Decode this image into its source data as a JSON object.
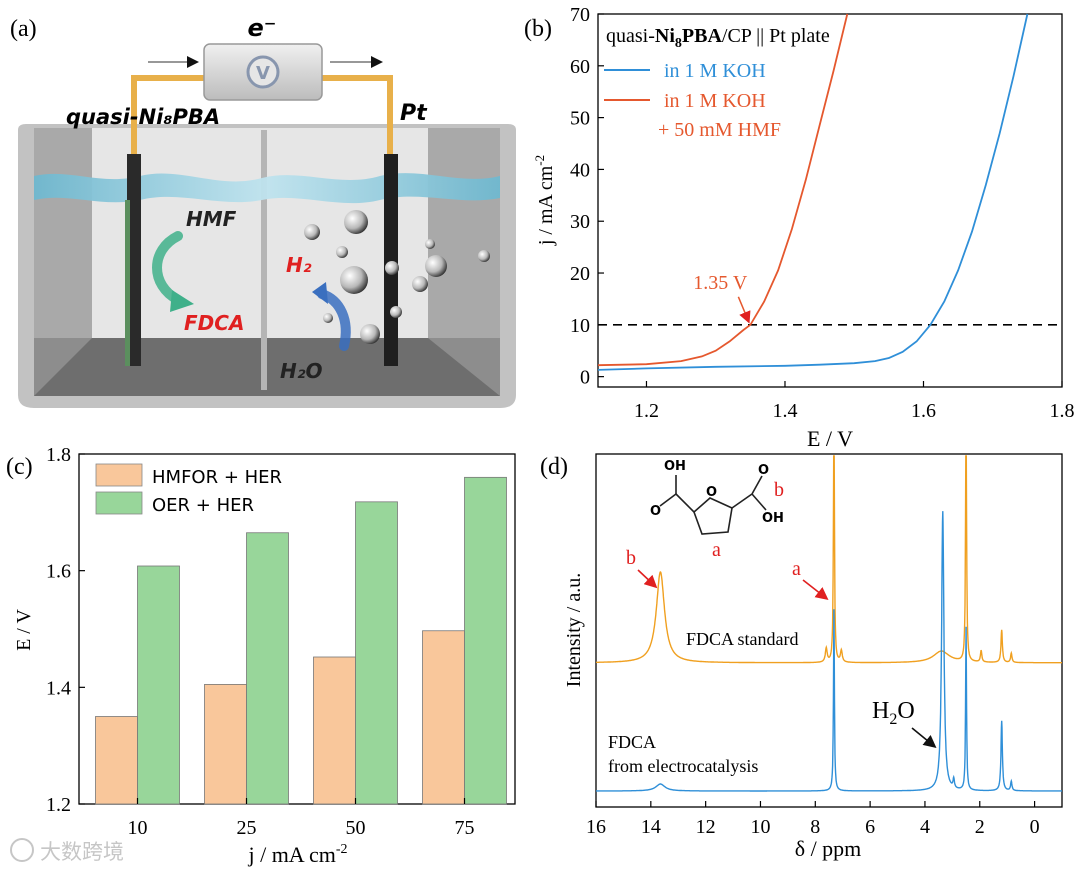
{
  "panels": {
    "a": {
      "label": "(a)",
      "electron": "e⁻",
      "voltmeter": "V",
      "anode_label": "quasi-Ni₈PBA",
      "cathode_label": "Pt",
      "hmf": "HMF",
      "fdca": "FDCA",
      "h2": "H₂",
      "h2o": "H₂O",
      "colors": {
        "tank": "#bfbfbf",
        "wire": "#e8b04a",
        "water": "#9ecfe0",
        "product": "#e02020"
      }
    },
    "b": {
      "label": "(b)"
    },
    "c": {
      "label": "(c)"
    },
    "d": {
      "label": "(d)"
    }
  },
  "watermark": "大数跨境",
  "chart_data": [
    {
      "panel": "b",
      "type": "line",
      "title": "quasi-Ni8PBA/CP || Pt plate",
      "title_parts": {
        "prefix": "quasi-",
        "bold": "Ni",
        "sub": "8",
        "bold2": "PBA",
        "suffix": "/CP || Pt plate"
      },
      "xlabel": "E / V",
      "ylabel": "j / mA cm-2",
      "xlim": [
        1.13,
        1.8
      ],
      "ylim": [
        -2,
        70
      ],
      "xticks": [
        "1.2",
        "1.4",
        "1.6",
        "1.8"
      ],
      "yticks": [
        "0",
        "10",
        "20",
        "30",
        "40",
        "50",
        "60",
        "70"
      ],
      "series": [
        {
          "name": "in 1 M KOH",
          "color": "#2f8fd8",
          "x": [
            1.13,
            1.2,
            1.3,
            1.4,
            1.45,
            1.5,
            1.53,
            1.55,
            1.57,
            1.59,
            1.61,
            1.63,
            1.65,
            1.67,
            1.69,
            1.71,
            1.73,
            1.75
          ],
          "y": [
            1.3,
            1.6,
            1.9,
            2.1,
            2.3,
            2.6,
            3.0,
            3.6,
            4.8,
            6.8,
            10.0,
            14.5,
            20.5,
            28.0,
            37.0,
            47.0,
            58.0,
            70.0
          ]
        },
        {
          "name_line1": "in 1 M KOH",
          "name_line2": "+ 50 mM HMF",
          "name": "in 1 M KOH + 50 mM HMF",
          "color": "#e5582e",
          "x": [
            1.13,
            1.2,
            1.25,
            1.28,
            1.3,
            1.32,
            1.34,
            1.35,
            1.37,
            1.39,
            1.41,
            1.43,
            1.45,
            1.47,
            1.49
          ],
          "y": [
            2.2,
            2.4,
            3.0,
            3.9,
            5.0,
            6.8,
            9.0,
            10.0,
            14.5,
            20.5,
            28.5,
            38.0,
            48.5,
            59.0,
            70.0
          ]
        }
      ],
      "reference_line": {
        "y": 10,
        "style": "dashed"
      },
      "annotation": {
        "text": "1.35 V",
        "x": 1.35,
        "y": 10
      }
    },
    {
      "panel": "c",
      "type": "bar",
      "xlabel": "j / mA cm-2",
      "ylabel": "E / V",
      "ylim": [
        1.2,
        1.8
      ],
      "yticks": [
        "1.2",
        "1.4",
        "1.6",
        "1.8"
      ],
      "categories": [
        "10",
        "25",
        "50",
        "75"
      ],
      "series": [
        {
          "name": "HMFOR + HER",
          "color": "#f9c79b",
          "values": [
            1.35,
            1.405,
            1.452,
            1.497
          ]
        },
        {
          "name": "OER + HER",
          "color": "#98d69a",
          "values": [
            1.608,
            1.665,
            1.718,
            1.76
          ]
        }
      ],
      "legend": "top-left"
    },
    {
      "panel": "d",
      "type": "line",
      "xlabel": "δ / ppm",
      "ylabel": "Intensity / a.u.",
      "xlim": [
        16,
        -1
      ],
      "xticks": [
        "16",
        "14",
        "12",
        "10",
        "8",
        "6",
        "4",
        "2",
        "0"
      ],
      "series": [
        {
          "name": "FDCA standard",
          "color": "#f0a020",
          "baseline": 0.55,
          "peaks": [
            {
              "ppm": 13.65,
              "height": 0.39,
              "width": 0.18
            },
            {
              "ppm": 7.32,
              "height": 1.2,
              "width": 0.02
            },
            {
              "ppm": 7.6,
              "height": 0.06,
              "width": 0.04
            },
            {
              "ppm": 7.05,
              "height": 0.05,
              "width": 0.04
            },
            {
              "ppm": 3.4,
              "height": 0.05,
              "width": 0.35
            },
            {
              "ppm": 2.5,
              "height": 1.2,
              "width": 0.02
            },
            {
              "ppm": 1.95,
              "height": 0.05,
              "width": 0.03
            },
            {
              "ppm": 1.2,
              "height": 0.14,
              "width": 0.03
            },
            {
              "ppm": 0.85,
              "height": 0.04,
              "width": 0.03
            }
          ]
        },
        {
          "name": "FDCA from electrocatalysis",
          "name_line1": "FDCA",
          "name_line2": "from electrocatalysis",
          "color": "#2f8fd8",
          "baseline": 0.0,
          "peaks": [
            {
              "ppm": 13.65,
              "height": 0.03,
              "width": 0.2
            },
            {
              "ppm": 7.32,
              "height": 0.78,
              "width": 0.02
            },
            {
              "ppm": 3.35,
              "height": 1.2,
              "width": 0.05
            },
            {
              "ppm": 2.5,
              "height": 0.7,
              "width": 0.02
            },
            {
              "ppm": 2.95,
              "height": 0.04,
              "width": 0.03
            },
            {
              "ppm": 1.2,
              "height": 0.3,
              "width": 0.03
            },
            {
              "ppm": 0.85,
              "height": 0.04,
              "width": 0.03
            }
          ]
        }
      ],
      "annotations": [
        {
          "text": "b",
          "target": "13.65 ppm peak"
        },
        {
          "text": "a",
          "target": "7.32 ppm peak"
        },
        {
          "text": "H2O",
          "target": "3.35 ppm peak"
        }
      ],
      "structure_labels": {
        "oh_top": "OH",
        "oh_right": "OH",
        "o_left": "O",
        "o_ring": "O",
        "o_right": "O",
        "a": "a",
        "b": "b"
      }
    }
  ]
}
